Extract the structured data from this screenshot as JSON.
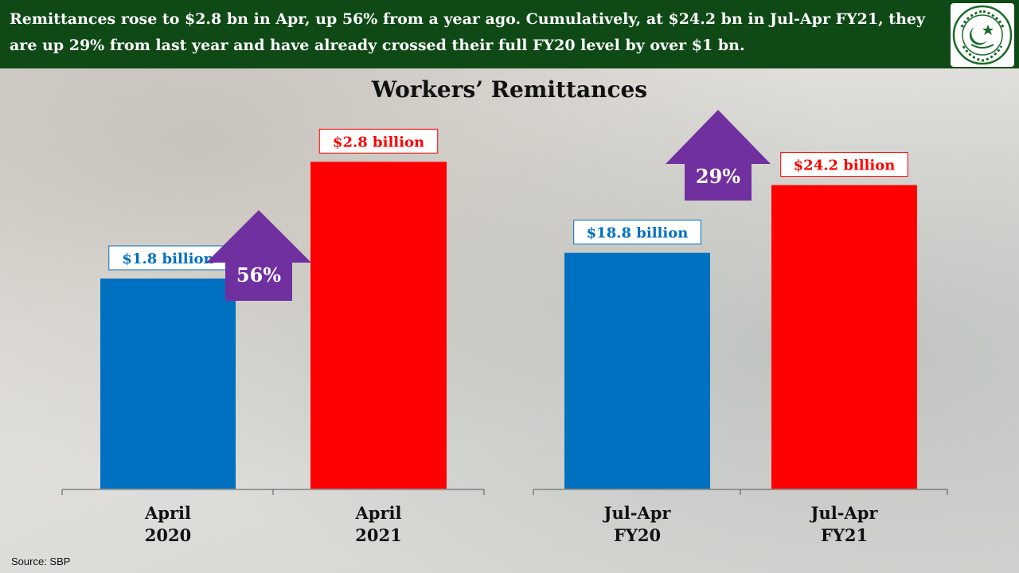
{
  "headline": "Remittances rose to $2.8 bn in Apr, up 56% from a year ago. Cumulatively, at $24.2 bn in Jul-Apr FY21, they are up 29% from last year and have already crossed their full FY20 level by over $1 bn.",
  "logo": {
    "icon": "state-bank-of-pakistan-seal-icon",
    "lettering": "STATE BANK OF PAKISTAN",
    "color": "#1a6b2a"
  },
  "source": "Source: SBP",
  "colors": {
    "banner": "#0f4a16",
    "blue": "#0070c0",
    "red": "#ff0000",
    "arrow": "#7030a0"
  },
  "chart_data": [
    {
      "type": "bar",
      "title": "Workers’ Remittances",
      "categories": [
        [
          "April",
          "2020"
        ],
        [
          "April",
          "2021"
        ]
      ],
      "values": [
        1.8,
        2.8
      ],
      "data_labels": [
        "$1.8 billion",
        "$2.8 billion"
      ],
      "colors": [
        "#0070c0",
        "#ff0000"
      ],
      "ylim": [
        0,
        3.6
      ],
      "growth_label": "56%"
    },
    {
      "type": "bar",
      "categories": [
        [
          "Jul-Apr",
          "FY20"
        ],
        [
          "Jul-Apr",
          "FY21"
        ]
      ],
      "values": [
        18.8,
        24.2
      ],
      "data_labels": [
        "$18.8 billion",
        "$24.2 billion"
      ],
      "colors": [
        "#0070c0",
        "#ff0000"
      ],
      "ylim": [
        0,
        33.5
      ],
      "growth_label": "29%"
    }
  ]
}
